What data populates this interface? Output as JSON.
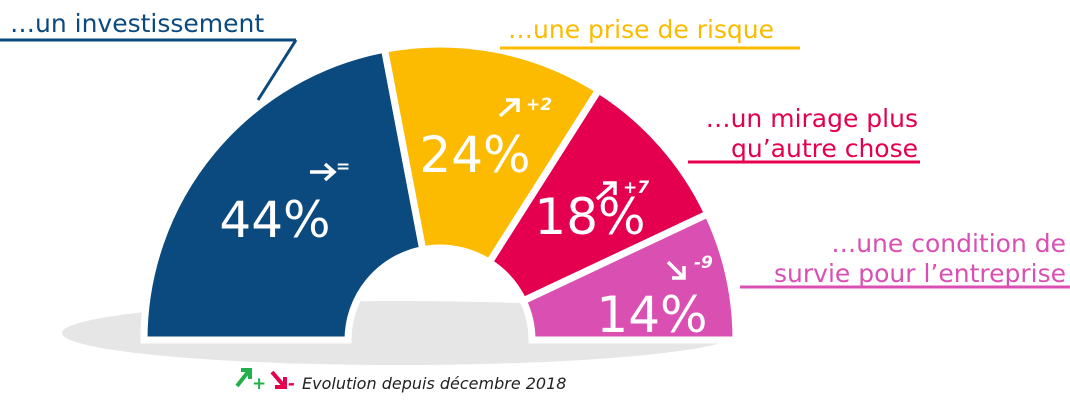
{
  "chart_data": {
    "type": "semi-donut",
    "labels": [
      [
        "…un investissement"
      ],
      [
        "…une prise de risque"
      ],
      [
        "…un mirage plus",
        "qu’autre chose"
      ],
      [
        "…une condition de",
        "survie pour l’entreprise"
      ]
    ],
    "values": [
      44,
      24,
      18,
      14
    ],
    "value_labels": [
      "44%",
      "24%",
      "18%",
      "14%"
    ],
    "changes": [
      "=",
      "+2",
      "+7",
      "-9"
    ],
    "colors": [
      "#0b4a7e",
      "#fcbb00",
      "#e4004f",
      "#d950b2"
    ],
    "legend": {
      "up": "+",
      "down": "-",
      "text": "Evolution depuis décembre 2018",
      "up_color": "#22b04b",
      "down_color": "#e4004f"
    }
  }
}
